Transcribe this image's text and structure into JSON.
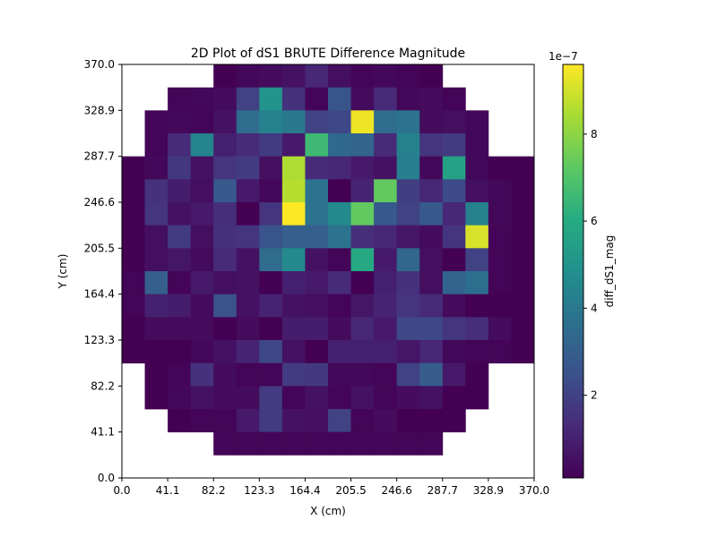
{
  "chart_data": {
    "type": "heatmap",
    "title": "2D Plot of dS1 BRUTE Difference Magnitude",
    "xlabel": "X (cm)",
    "ylabel": "Y (cm)",
    "xlim": [
      0.0,
      370.0
    ],
    "ylim": [
      0.0,
      370.0
    ],
    "grid_size": 18,
    "xticks": [
      "0.0",
      "41.1",
      "82.2",
      "123.3",
      "164.4",
      "205.5",
      "246.6",
      "287.7",
      "328.9",
      "370.0"
    ],
    "yticks": [
      "0.0",
      "41.1",
      "82.2",
      "123.3",
      "164.4",
      "205.5",
      "246.6",
      "287.7",
      "328.9",
      "370.0"
    ],
    "colormap": "viridis",
    "colorbar": {
      "label": "diff_dS1_mag",
      "offset_label": "1e−7",
      "vmin": 0.1,
      "vmax": 9.6,
      "ticks": [
        2,
        4,
        6,
        8
      ],
      "tick_labels": [
        "2",
        "4",
        "6",
        "8"
      ]
    },
    "values_unit_note": "values in units of 1e-7; null = empty cell",
    "rows_top_to_bottom": [
      [
        null,
        null,
        null,
        null,
        0.1,
        0.3,
        0.4,
        0.6,
        1.2,
        0.5,
        0.2,
        0.3,
        0.2,
        0.1,
        null,
        null,
        null,
        null
      ],
      [
        null,
        null,
        0.2,
        0.3,
        0.4,
        2.0,
        5.0,
        1.5,
        0.2,
        2.6,
        0.4,
        1.3,
        0.3,
        0.4,
        0.2,
        null,
        null,
        null
      ],
      [
        null,
        0.2,
        0.3,
        0.2,
        0.6,
        3.5,
        4.3,
        4.0,
        2.0,
        2.2,
        9.4,
        3.5,
        3.8,
        0.4,
        0.5,
        0.3,
        null,
        null
      ],
      [
        null,
        0.2,
        1.3,
        4.4,
        1.0,
        1.3,
        1.8,
        0.8,
        6.6,
        3.4,
        3.2,
        1.3,
        4.3,
        1.6,
        1.8,
        0.3,
        null,
        null
      ],
      [
        0.1,
        0.3,
        1.7,
        0.6,
        1.6,
        1.8,
        0.5,
        8.5,
        1.3,
        1.2,
        0.8,
        0.6,
        4.2,
        0.3,
        5.6,
        0.3,
        0.1,
        0.1
      ],
      [
        0.1,
        1.5,
        0.9,
        0.5,
        2.8,
        0.8,
        0.3,
        8.6,
        3.8,
        0.1,
        1.1,
        7.3,
        1.9,
        1.2,
        2.3,
        0.5,
        0.3,
        0.1
      ],
      [
        0.1,
        1.6,
        0.6,
        0.8,
        1.4,
        0.1,
        1.6,
        9.6,
        3.8,
        4.6,
        7.3,
        2.8,
        2.0,
        2.8,
        1.2,
        4.3,
        0.3,
        0.1
      ],
      [
        0.1,
        0.5,
        1.8,
        0.5,
        1.5,
        1.6,
        2.6,
        3.0,
        3.0,
        3.8,
        1.4,
        1.2,
        0.7,
        0.4,
        1.6,
        9.1,
        0.2,
        0.1
      ],
      [
        0.1,
        0.5,
        0.7,
        0.4,
        1.3,
        0.6,
        3.5,
        4.6,
        0.6,
        0.2,
        5.9,
        0.8,
        3.3,
        0.5,
        0.1,
        2.0,
        0.2,
        0.1
      ],
      [
        0.2,
        3.0,
        0.2,
        0.8,
        0.5,
        0.6,
        0.1,
        1.0,
        0.8,
        1.3,
        0.1,
        1.0,
        1.5,
        0.5,
        3.2,
        3.6,
        0.2,
        0.1
      ],
      [
        0.2,
        1.0,
        0.9,
        0.4,
        2.5,
        0.6,
        1.1,
        0.6,
        0.5,
        0.2,
        0.7,
        1.1,
        1.6,
        1.3,
        0.4,
        0.1,
        0.1,
        0.1
      ],
      [
        0.1,
        0.4,
        0.4,
        0.4,
        0.1,
        0.4,
        0.1,
        0.9,
        0.9,
        0.4,
        1.2,
        0.8,
        2.2,
        2.2,
        1.6,
        1.4,
        0.4,
        0.1
      ],
      [
        0.1,
        0.1,
        0.1,
        0.3,
        0.6,
        1.1,
        2.2,
        0.6,
        0.1,
        1.0,
        1.0,
        1.0,
        0.7,
        1.2,
        0.3,
        0.2,
        0.2,
        0.1
      ],
      [
        null,
        0.1,
        0.2,
        1.5,
        0.4,
        0.2,
        0.2,
        1.8,
        1.7,
        0.3,
        0.3,
        0.2,
        2.0,
        2.9,
        0.8,
        0.1,
        null,
        null
      ],
      [
        null,
        0.1,
        0.3,
        0.6,
        0.4,
        0.4,
        1.8,
        0.2,
        0.6,
        0.2,
        0.6,
        0.2,
        0.4,
        0.6,
        0.1,
        0.1,
        null,
        null
      ],
      [
        null,
        null,
        0.1,
        0.2,
        0.2,
        0.8,
        1.8,
        0.6,
        0.5,
        2.0,
        0.2,
        0.4,
        0.1,
        0.1,
        0.1,
        null,
        null,
        null
      ],
      [
        null,
        null,
        null,
        null,
        0.2,
        0.2,
        0.2,
        0.2,
        0.2,
        0.2,
        0.2,
        0.2,
        0.2,
        0.2,
        null,
        null,
        null,
        null
      ],
      [
        null,
        null,
        null,
        null,
        null,
        null,
        null,
        null,
        null,
        null,
        null,
        null,
        null,
        null,
        null,
        null,
        null,
        null
      ]
    ]
  }
}
